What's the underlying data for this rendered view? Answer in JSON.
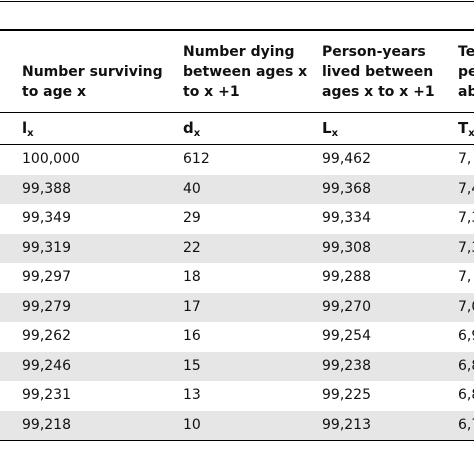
{
  "table": {
    "headers": [
      [
        "Number surviving",
        "to age x"
      ],
      [
        "Number dying",
        "between ages x",
        "to x +1"
      ],
      [
        "Person-years",
        "lived between",
        "ages x to x +1"
      ],
      [
        "Te",
        "pe",
        "ab"
      ]
    ],
    "symbols": [
      {
        "main": "l",
        "sub": "x"
      },
      {
        "main": "d",
        "sub": "x"
      },
      {
        "main": "L",
        "sub": "x"
      },
      {
        "main": "T",
        "sub": "x"
      }
    ],
    "rows": [
      [
        "100,000",
        "612",
        "99,462",
        "7,"
      ],
      [
        "99,388",
        "40",
        "99,368",
        "7,4"
      ],
      [
        "99,349",
        "29",
        "99,334",
        "7,3"
      ],
      [
        "99,319",
        "22",
        "99,308",
        "7,3"
      ],
      [
        "99,297",
        "18",
        "99,288",
        "7,"
      ],
      [
        "99,279",
        "17",
        "99,270",
        "7,0"
      ],
      [
        "99,262",
        "16",
        "99,254",
        "6,9"
      ],
      [
        "99,246",
        "15",
        "99,238",
        "6,8"
      ],
      [
        "99,231",
        "13",
        "99,225",
        "6,8"
      ],
      [
        "99,218",
        "10",
        "99,213",
        "6,7"
      ]
    ]
  }
}
